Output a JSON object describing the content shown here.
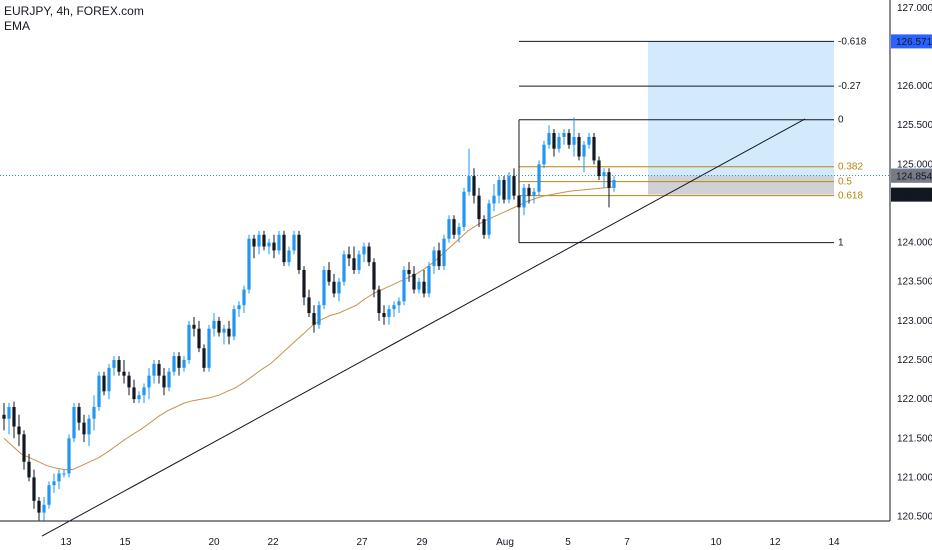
{
  "header": {
    "symbol_line": "EURJPY, 4h, FOREX.com",
    "indicator_line": "EMA"
  },
  "chart_data": {
    "type": "candlestick",
    "ylim": [
      120.2,
      127.1
    ],
    "x_ticks": [
      "13",
      "15",
      "20",
      "22",
      "27",
      "29",
      "Aug",
      "5",
      "7",
      "10",
      "12",
      "14"
    ],
    "y_ticks": [
      "127.000",
      "126.000",
      "125.500",
      "125.000",
      "124.000",
      "123.500",
      "123.000",
      "122.500",
      "122.000",
      "121.500",
      "121.000",
      "120.500"
    ],
    "price_badges": [
      {
        "text": "126.571",
        "value": 126.571,
        "color": "#2962ff"
      },
      {
        "text": "124.857",
        "value": 124.857,
        "color": "#2196f3"
      },
      {
        "text": "124.854",
        "value": 124.854,
        "color": "#787b86"
      },
      {
        "text": "124.613",
        "value": 124.613,
        "color": "#131722"
      }
    ],
    "last_price": 124.857,
    "fib_levels": [
      {
        "label": "-0.618",
        "value": 126.571,
        "color": "#131722"
      },
      {
        "label": "-0.27",
        "value": 126.0,
        "color": "#131722"
      },
      {
        "label": "0",
        "value": 125.57,
        "color": "#131722"
      },
      {
        "label": "0.382",
        "value": 124.97,
        "color": "#b8860b"
      },
      {
        "label": "0.5",
        "value": 124.78,
        "color": "#b8860b"
      },
      {
        "label": "0.618",
        "value": 124.6,
        "color": "#b8860b"
      },
      {
        "label": "1",
        "value": 124.0,
        "color": "#131722"
      }
    ],
    "position": {
      "entry": 124.857,
      "target": 126.571,
      "stop": 124.613
    },
    "trendline": {
      "from": [
        0,
        120.25
      ],
      "to": [
        135,
        125.58
      ]
    },
    "ema_color": "#c8924a",
    "up_color": "#2196f3",
    "down_color": "#131722",
    "candles": [
      [
        121.8,
        121.95,
        121.6,
        121.75
      ],
      [
        121.75,
        121.95,
        121.55,
        121.9
      ],
      [
        121.9,
        121.97,
        121.5,
        121.65
      ],
      [
        121.65,
        121.8,
        121.4,
        121.55
      ],
      [
        121.55,
        121.6,
        121.1,
        121.2
      ],
      [
        121.2,
        121.3,
        120.95,
        121.0
      ],
      [
        121.0,
        121.1,
        120.6,
        120.7
      ],
      [
        120.7,
        120.75,
        120.45,
        120.55
      ],
      [
        120.55,
        120.75,
        120.45,
        120.65
      ],
      [
        120.65,
        120.95,
        120.6,
        120.9
      ],
      [
        120.9,
        121.05,
        120.8,
        120.95
      ],
      [
        120.95,
        121.1,
        120.85,
        121.05
      ],
      [
        121.05,
        121.1,
        121.0,
        121.05
      ],
      [
        121.05,
        121.55,
        121.0,
        121.5
      ],
      [
        121.5,
        121.95,
        121.45,
        121.9
      ],
      [
        121.9,
        121.95,
        121.6,
        121.7
      ],
      [
        121.7,
        121.8,
        121.45,
        121.55
      ],
      [
        121.55,
        121.8,
        121.4,
        121.75
      ],
      [
        121.75,
        122.05,
        121.6,
        121.9
      ],
      [
        121.9,
        122.35,
        121.85,
        122.3
      ],
      [
        122.3,
        122.35,
        122.05,
        122.1
      ],
      [
        122.1,
        122.45,
        122.0,
        122.4
      ],
      [
        122.4,
        122.55,
        122.3,
        122.5
      ],
      [
        122.5,
        122.55,
        122.3,
        122.35
      ],
      [
        122.35,
        122.5,
        122.2,
        122.3
      ],
      [
        122.3,
        122.35,
        122.05,
        122.15
      ],
      [
        122.15,
        122.25,
        121.95,
        122.0
      ],
      [
        122.0,
        122.1,
        121.95,
        122.05
      ],
      [
        122.05,
        122.2,
        121.95,
        122.15
      ],
      [
        122.15,
        122.4,
        122.0,
        122.3
      ],
      [
        122.3,
        122.5,
        122.2,
        122.45
      ],
      [
        122.45,
        122.5,
        122.2,
        122.3
      ],
      [
        122.3,
        122.4,
        122.05,
        122.15
      ],
      [
        122.15,
        122.4,
        122.1,
        122.35
      ],
      [
        122.35,
        122.6,
        122.3,
        122.55
      ],
      [
        122.55,
        122.6,
        122.3,
        122.4
      ],
      [
        122.4,
        122.55,
        122.35,
        122.5
      ],
      [
        122.5,
        123.0,
        122.45,
        122.95
      ],
      [
        122.95,
        123.05,
        122.8,
        122.9
      ],
      [
        122.9,
        123.0,
        122.6,
        122.65
      ],
      [
        122.65,
        122.7,
        122.35,
        122.4
      ],
      [
        122.4,
        122.95,
        122.35,
        122.9
      ],
      [
        122.9,
        123.1,
        122.8,
        123.0
      ],
      [
        123.0,
        123.05,
        122.8,
        122.85
      ],
      [
        122.85,
        122.95,
        122.7,
        122.9
      ],
      [
        122.9,
        123.0,
        122.7,
        122.8
      ],
      [
        122.8,
        123.2,
        122.75,
        123.15
      ],
      [
        123.15,
        123.25,
        123.05,
        123.2
      ],
      [
        123.2,
        123.45,
        123.1,
        123.4
      ],
      [
        123.4,
        124.1,
        123.35,
        124.05
      ],
      [
        124.05,
        124.1,
        123.8,
        123.95
      ],
      [
        123.95,
        124.15,
        123.85,
        124.1
      ],
      [
        124.1,
        124.15,
        123.9,
        123.95
      ],
      [
        123.95,
        124.05,
        123.85,
        124.0
      ],
      [
        124.0,
        124.1,
        123.8,
        123.9
      ],
      [
        123.9,
        124.15,
        123.85,
        124.1
      ],
      [
        124.1,
        124.15,
        123.7,
        123.75
      ],
      [
        123.75,
        123.95,
        123.7,
        123.9
      ],
      [
        123.9,
        124.15,
        123.85,
        124.1
      ],
      [
        124.1,
        124.15,
        123.6,
        123.65
      ],
      [
        123.65,
        123.7,
        123.2,
        123.3
      ],
      [
        123.3,
        123.4,
        123.05,
        123.1
      ],
      [
        123.1,
        123.2,
        122.85,
        122.95
      ],
      [
        122.95,
        123.25,
        122.9,
        123.2
      ],
      [
        123.2,
        123.7,
        123.15,
        123.65
      ],
      [
        123.65,
        123.75,
        123.45,
        123.5
      ],
      [
        123.5,
        123.6,
        123.3,
        123.35
      ],
      [
        123.35,
        123.55,
        123.25,
        123.5
      ],
      [
        123.5,
        123.9,
        123.45,
        123.85
      ],
      [
        123.85,
        123.95,
        123.7,
        123.8
      ],
      [
        123.8,
        123.95,
        123.6,
        123.65
      ],
      [
        123.65,
        123.9,
        123.6,
        123.85
      ],
      [
        123.85,
        124.0,
        123.75,
        123.95
      ],
      [
        123.95,
        124.0,
        123.7,
        123.75
      ],
      [
        123.75,
        123.8,
        123.3,
        123.4
      ],
      [
        123.4,
        123.45,
        123.0,
        123.1
      ],
      [
        123.1,
        123.2,
        122.95,
        123.05
      ],
      [
        123.05,
        123.2,
        122.95,
        123.15
      ],
      [
        123.15,
        123.25,
        123.05,
        123.2
      ],
      [
        123.2,
        123.3,
        123.1,
        123.25
      ],
      [
        123.25,
        123.7,
        123.2,
        123.65
      ],
      [
        123.65,
        123.75,
        123.5,
        123.6
      ],
      [
        123.6,
        123.7,
        123.35,
        123.4
      ],
      [
        123.4,
        123.55,
        123.35,
        123.5
      ],
      [
        123.5,
        123.65,
        123.3,
        123.35
      ],
      [
        123.35,
        123.75,
        123.3,
        123.7
      ],
      [
        123.7,
        123.95,
        123.6,
        123.9
      ],
      [
        123.9,
        124.0,
        123.65,
        123.7
      ],
      [
        123.7,
        124.1,
        123.65,
        124.05
      ],
      [
        124.05,
        124.35,
        124.0,
        124.3
      ],
      [
        124.3,
        124.35,
        124.05,
        124.1
      ],
      [
        124.1,
        124.25,
        124.0,
        124.2
      ],
      [
        124.2,
        124.7,
        124.15,
        124.65
      ],
      [
        124.65,
        125.2,
        124.6,
        124.85
      ],
      [
        124.85,
        124.95,
        124.5,
        124.6
      ],
      [
        124.6,
        124.7,
        124.2,
        124.3
      ],
      [
        124.3,
        124.35,
        124.05,
        124.1
      ],
      [
        124.1,
        124.55,
        124.05,
        124.5
      ],
      [
        124.5,
        124.75,
        124.4,
        124.6
      ],
      [
        124.6,
        124.85,
        124.5,
        124.8
      ],
      [
        124.8,
        124.85,
        124.5,
        124.55
      ],
      [
        124.55,
        124.9,
        124.5,
        124.85
      ],
      [
        124.85,
        124.95,
        124.55,
        124.6
      ],
      [
        124.6,
        124.65,
        124.3,
        124.45
      ],
      [
        124.45,
        124.75,
        124.35,
        124.7
      ],
      [
        124.7,
        124.75,
        124.5,
        124.6
      ],
      [
        124.6,
        124.7,
        124.5,
        124.65
      ],
      [
        124.65,
        125.05,
        124.6,
        125.0
      ],
      [
        125.0,
        125.3,
        124.95,
        125.25
      ],
      [
        125.25,
        125.5,
        125.2,
        125.4
      ],
      [
        125.4,
        125.45,
        125.1,
        125.2
      ],
      [
        125.2,
        125.4,
        125.15,
        125.35
      ],
      [
        125.35,
        125.45,
        125.25,
        125.4
      ],
      [
        125.4,
        125.45,
        125.2,
        125.25
      ],
      [
        125.25,
        125.6,
        125.1,
        125.35
      ],
      [
        125.35,
        125.4,
        125.05,
        125.1
      ],
      [
        125.1,
        125.3,
        124.9,
        125.25
      ],
      [
        125.25,
        125.4,
        125.2,
        125.35
      ],
      [
        125.35,
        125.4,
        125.0,
        125.05
      ],
      [
        125.05,
        125.1,
        124.8,
        124.85
      ],
      [
        124.85,
        124.95,
        124.7,
        124.9
      ],
      [
        124.9,
        124.95,
        124.45,
        124.7
      ],
      [
        124.7,
        124.85,
        124.65,
        124.8
      ]
    ],
    "ema": [
      121.5,
      121.4,
      121.3,
      121.25,
      121.2,
      121.15,
      121.12,
      121.1,
      121.1,
      121.15,
      121.2,
      121.25,
      121.32,
      121.4,
      121.48,
      121.55,
      121.62,
      121.7,
      121.78,
      121.85,
      121.9,
      121.95,
      121.98,
      122.0,
      122.02,
      122.05,
      122.1,
      122.15,
      122.22,
      122.3,
      122.38,
      122.45,
      122.55,
      122.65,
      122.75,
      122.85,
      122.95,
      123.02,
      123.07,
      123.1,
      123.15,
      123.2,
      123.28,
      123.35,
      123.4,
      123.45,
      123.5,
      123.55,
      123.6,
      123.67,
      123.75,
      123.85,
      123.95,
      124.05,
      124.15,
      124.22,
      124.28,
      124.33,
      124.38,
      124.43,
      124.48,
      124.53,
      124.57,
      124.6,
      124.62,
      124.64,
      124.66,
      124.67,
      124.68,
      124.69,
      124.7,
      124.71
    ]
  }
}
